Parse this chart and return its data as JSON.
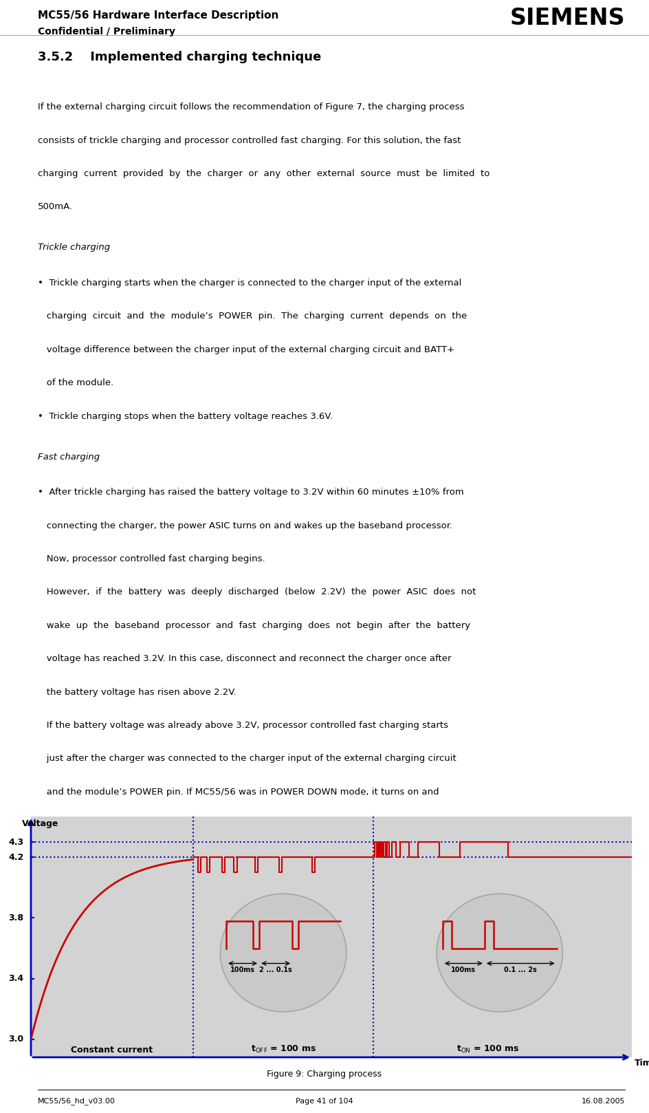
{
  "title": "MC55/56 Hardware Interface Description",
  "subtitle": "Confidential / Preliminary",
  "siemens_logo": "SIEMENS",
  "figure_caption": "Figure 9: Charging process",
  "footer_left": "MC55/56_hd_v03.00",
  "footer_center": "Page 41 of 104",
  "footer_right": "16.08.2005",
  "chart": {
    "bg_color": "#d3d3d3",
    "axis_color": "#0000bb",
    "curve_color": "#cc0000",
    "dotted_line_color": "#0000bb",
    "yticks": [
      3.0,
      3.4,
      3.8,
      4.2,
      4.3
    ],
    "ymin": 2.88,
    "ymax": 4.47,
    "xmin": 0,
    "xmax": 100,
    "vline1_x": 27,
    "vline2_x": 57,
    "hline1_y": 4.2,
    "hline2_y": 4.3
  }
}
